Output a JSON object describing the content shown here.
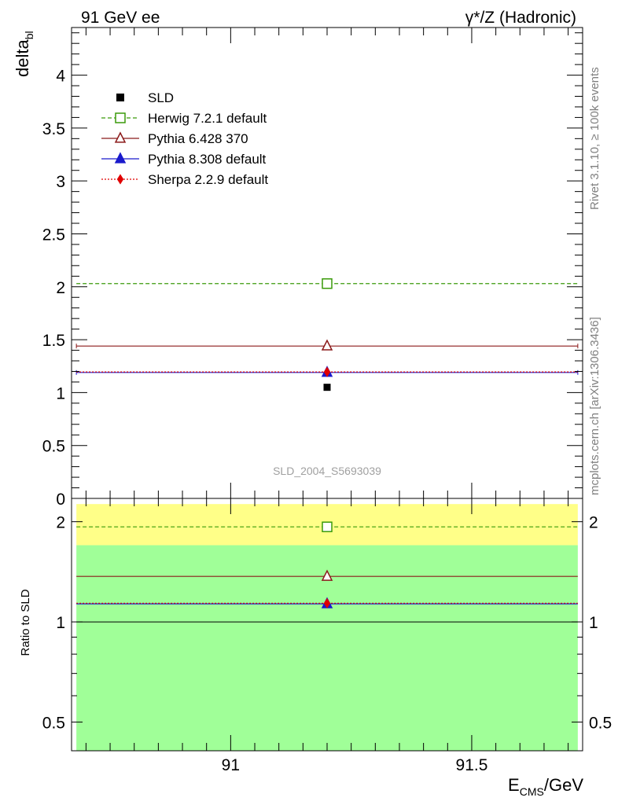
{
  "header": {
    "left": "91 GeV ee",
    "right": "γ*/Z (Hadronic)"
  },
  "side_text": {
    "rivet": "Rivet 3.1.10, ≥ 100k events",
    "mcplots": "mcplots.cern.ch [arXiv:1306.3436]"
  },
  "watermark": "SLD_2004_S5693039",
  "chart_data": [
    {
      "type": "line",
      "panel": "main",
      "ylabel_main": "delta",
      "ylabel_sub": "bl",
      "xlim": [
        90.67,
        91.73
      ],
      "ylim": [
        0,
        4.45
      ],
      "yticks": [
        0,
        0.5,
        1,
        1.5,
        2,
        2.5,
        3,
        3.5,
        4
      ],
      "ytick_labels": [
        "0",
        "0.5",
        "1",
        "1.5",
        "2",
        "2.5",
        "3",
        "3.5",
        "4"
      ],
      "legend_position": "top-left",
      "data_point": {
        "name": "SLD",
        "x": 91.2,
        "y": 1.05,
        "color": "#000000",
        "marker": "square-filled"
      },
      "series": [
        {
          "name": "Herwig 7.2.1 default",
          "x": 91.2,
          "y": 2.03,
          "xerr": [
            90.68,
            91.72
          ],
          "color": "#3a9a0a",
          "dash": "5,3",
          "marker": "square-open"
        },
        {
          "name": "Pythia 6.428 370",
          "x": 91.2,
          "y": 1.44,
          "xerr": [
            90.68,
            91.72
          ],
          "color": "#8b1a1a",
          "dash": "",
          "marker": "triangle-open"
        },
        {
          "name": "Pythia 8.308 default",
          "x": 91.2,
          "y": 1.19,
          "xerr": [
            90.68,
            91.72
          ],
          "color": "#1a1acc",
          "dash": "",
          "marker": "triangle-filled"
        },
        {
          "name": "Sherpa 2.2.9 default",
          "x": 91.2,
          "y": 1.195,
          "xerr": [
            90.68,
            91.72
          ],
          "color": "#e00000",
          "dash": "2,2",
          "marker": "diamond-filled"
        }
      ]
    },
    {
      "type": "line",
      "panel": "ratio",
      "ylabel": "Ratio to SLD",
      "xlabel_main": "E",
      "xlabel_sub": "CMS",
      "xlabel_unit": "/GeV",
      "scale": "log",
      "ylim": [
        0.41,
        2.35
      ],
      "yticks": [
        0.5,
        1,
        2
      ],
      "ytick_labels": [
        "0.5",
        "1",
        "2"
      ],
      "xticks": [
        91,
        91.5
      ],
      "xtick_labels": [
        "91",
        "91.5"
      ],
      "bands": [
        {
          "name": "1 sigma",
          "low": 0.4,
          "high": 1.7,
          "color": "#a0ff98"
        },
        {
          "name": "2 sigma",
          "low": 1.7,
          "high": 2.26,
          "color": "#ffff88"
        }
      ],
      "reference": 1.0,
      "series": [
        {
          "name": "Herwig 7.2.1 default",
          "y": 1.93,
          "color": "#3a9a0a",
          "dash": "5,3",
          "marker": "square-open"
        },
        {
          "name": "Pythia 6.428 370",
          "y": 1.37,
          "color": "#8b1a1a",
          "dash": "",
          "marker": "triangle-open"
        },
        {
          "name": "Pythia 8.308 default",
          "y": 1.133,
          "color": "#1a1acc",
          "dash": "",
          "marker": "triangle-filled"
        },
        {
          "name": "Sherpa 2.2.9 default",
          "y": 1.138,
          "color": "#e00000",
          "dash": "2,2",
          "marker": "diamond-filled"
        }
      ]
    }
  ]
}
